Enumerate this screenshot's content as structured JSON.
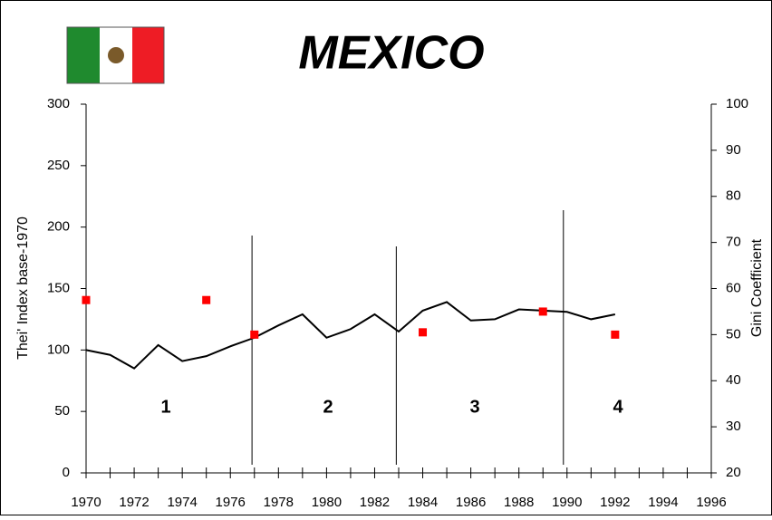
{
  "chart_data": {
    "type": "line",
    "title": "MEXICO",
    "ylabel": "Thei' Index base-1970",
    "y2label": "Gini Coefficient",
    "x": [
      1970,
      1971,
      1972,
      1973,
      1974,
      1975,
      1976,
      1977,
      1978,
      1979,
      1980,
      1981,
      1982,
      1983,
      1984,
      1985,
      1986,
      1987,
      1988,
      1989,
      1990,
      1991,
      1992
    ],
    "series": [
      {
        "type": "line",
        "color": "#000000",
        "values": [
          100,
          96,
          85,
          104,
          91,
          95,
          103,
          110,
          120,
          129,
          110,
          117,
          129,
          115,
          132,
          139,
          124,
          125,
          133,
          132,
          131,
          125,
          129
        ]
      },
      {
        "type": "scatter",
        "color": "#ff0000",
        "axis": "y2",
        "x": [
          1970,
          1975,
          1977,
          1984,
          1989,
          1992
        ],
        "values": [
          57.5,
          57.5,
          50,
          50.5,
          55,
          50
        ]
      }
    ],
    "dividers": [
      1976.9,
      1982.9,
      1989.85
    ],
    "regions": [
      "1",
      "2",
      "3",
      "4"
    ],
    "xlim": [
      1970,
      1996
    ],
    "xticks": [
      1970,
      1972,
      1974,
      1976,
      1978,
      1980,
      1982,
      1984,
      1986,
      1988,
      1990,
      1992,
      1994,
      1996
    ],
    "ylim": [
      0,
      300
    ],
    "yticks": [
      0,
      50,
      100,
      150,
      200,
      250,
      300
    ],
    "y2lim": [
      20,
      100
    ],
    "y2ticks": [
      20,
      30,
      40,
      50,
      60,
      70,
      80,
      90,
      100
    ]
  }
}
